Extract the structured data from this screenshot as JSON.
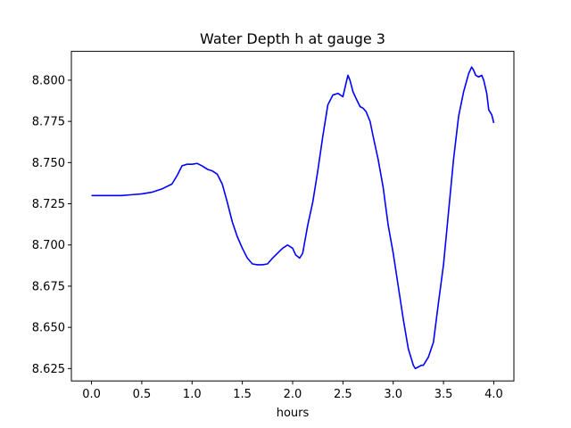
{
  "chart_data": {
    "type": "line",
    "title": "Water Depth h at gauge 3",
    "xlabel": "hours",
    "ylabel": "",
    "xlim": [
      -0.2,
      4.2
    ],
    "ylim": [
      8.6175,
      8.8175
    ],
    "xticks": [
      0.0,
      0.5,
      1.0,
      1.5,
      2.0,
      2.5,
      3.0,
      3.5,
      4.0
    ],
    "xtick_labels": [
      "0.0",
      "0.5",
      "1.0",
      "1.5",
      "2.0",
      "2.5",
      "3.0",
      "3.5",
      "4.0"
    ],
    "yticks": [
      8.625,
      8.65,
      8.675,
      8.7,
      8.725,
      8.75,
      8.775,
      8.8
    ],
    "ytick_labels": [
      "8.625",
      "8.650",
      "8.675",
      "8.700",
      "8.725",
      "8.750",
      "8.775",
      "8.800"
    ],
    "grid": false,
    "series": [
      {
        "color": "#0000ff",
        "x": [
          0.0,
          0.1,
          0.2,
          0.3,
          0.4,
          0.5,
          0.6,
          0.7,
          0.8,
          0.85,
          0.9,
          0.95,
          1.0,
          1.05,
          1.1,
          1.15,
          1.2,
          1.25,
          1.3,
          1.35,
          1.4,
          1.45,
          1.5,
          1.55,
          1.6,
          1.65,
          1.7,
          1.75,
          1.8,
          1.85,
          1.9,
          1.95,
          2.0,
          2.03,
          2.07,
          2.1,
          2.15,
          2.2,
          2.25,
          2.3,
          2.35,
          2.4,
          2.45,
          2.5,
          2.53,
          2.55,
          2.57,
          2.6,
          2.63,
          2.67,
          2.7,
          2.73,
          2.77,
          2.8,
          2.85,
          2.9,
          2.95,
          3.0,
          3.05,
          3.1,
          3.15,
          3.2,
          3.22,
          3.25,
          3.28,
          3.3,
          3.35,
          3.4,
          3.45,
          3.5,
          3.55,
          3.6,
          3.65,
          3.7,
          3.75,
          3.78,
          3.8,
          3.82,
          3.85,
          3.88,
          3.9,
          3.93,
          3.95,
          3.98,
          4.0
        ],
        "y": [
          8.73,
          8.73,
          8.73,
          8.73,
          8.7305,
          8.731,
          8.732,
          8.734,
          8.737,
          8.742,
          8.748,
          8.749,
          8.749,
          8.7495,
          8.748,
          8.746,
          8.745,
          8.743,
          8.737,
          8.726,
          8.714,
          8.705,
          8.698,
          8.692,
          8.6885,
          8.688,
          8.688,
          8.6885,
          8.692,
          8.695,
          8.698,
          8.7,
          8.698,
          8.694,
          8.692,
          8.695,
          8.712,
          8.726,
          8.745,
          8.766,
          8.785,
          8.791,
          8.792,
          8.79,
          8.798,
          8.803,
          8.8,
          8.793,
          8.789,
          8.784,
          8.783,
          8.781,
          8.775,
          8.766,
          8.752,
          8.735,
          8.712,
          8.695,
          8.675,
          8.655,
          8.637,
          8.627,
          8.625,
          8.626,
          8.627,
          8.627,
          8.632,
          8.641,
          8.665,
          8.688,
          8.72,
          8.752,
          8.778,
          8.793,
          8.804,
          8.808,
          8.806,
          8.803,
          8.802,
          8.803,
          8.8,
          8.792,
          8.782,
          8.779,
          8.774
        ]
      }
    ]
  }
}
